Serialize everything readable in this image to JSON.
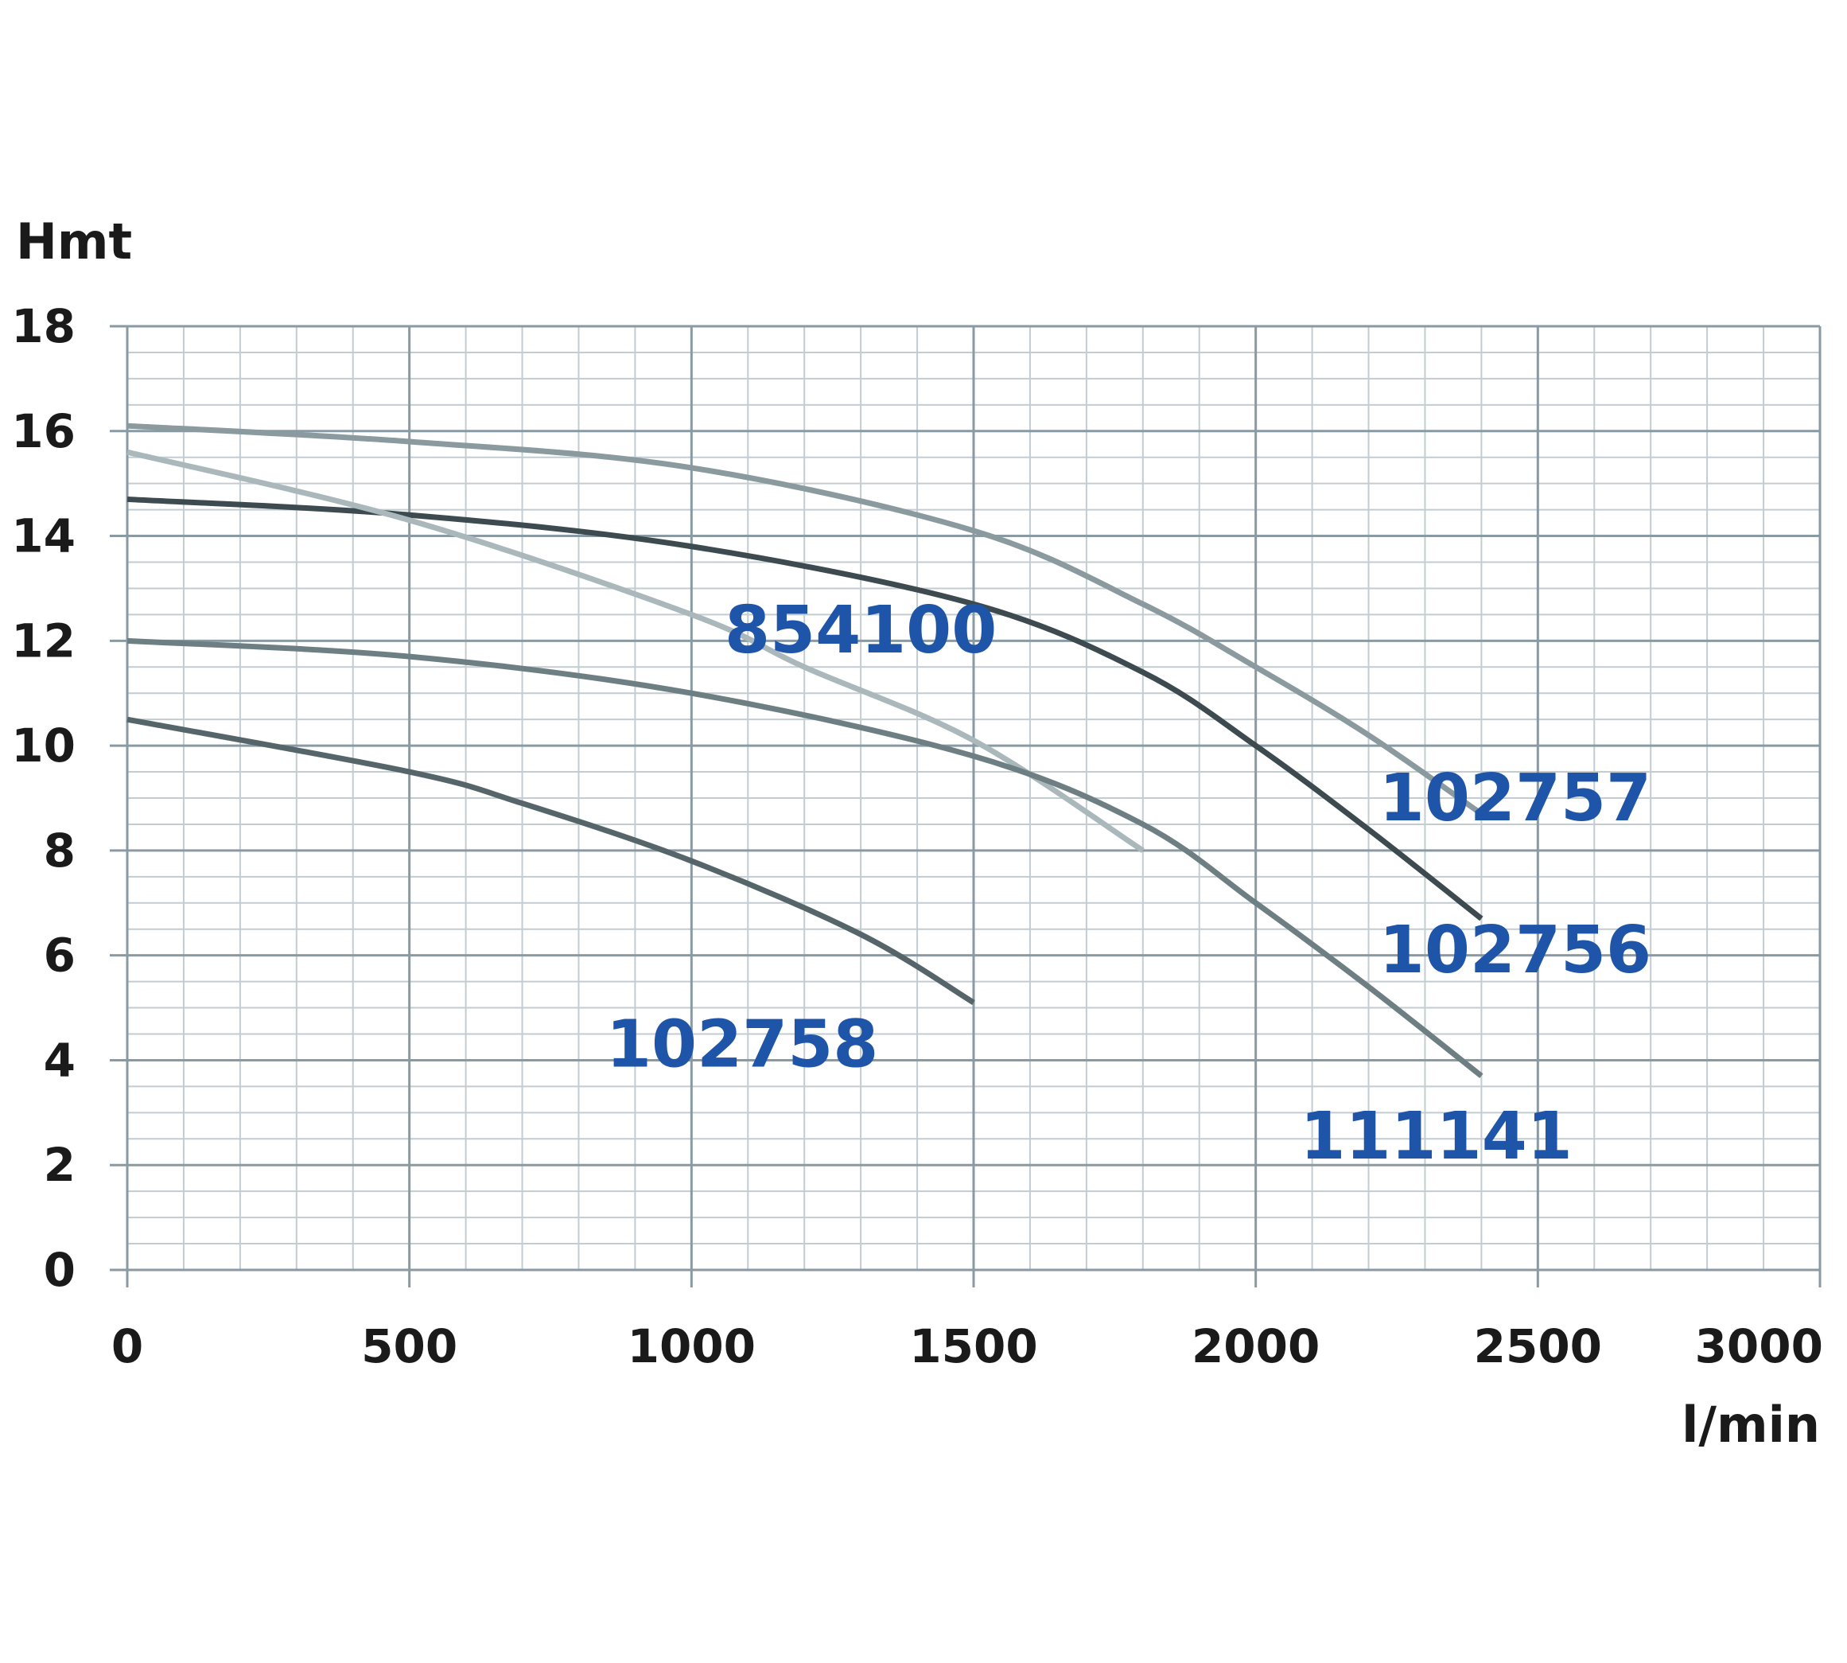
{
  "chart_data": {
    "type": "line",
    "title": "",
    "xlabel": "l/min",
    "ylabel": "Hmt",
    "xlim": [
      0,
      3000
    ],
    "ylim": [
      0,
      18
    ],
    "x_ticks": [
      0,
      500,
      1000,
      1500,
      2000,
      2500,
      3000
    ],
    "y_ticks": [
      0,
      2,
      4,
      6,
      8,
      10,
      12,
      14,
      16,
      18
    ],
    "grid": true,
    "legend": "none",
    "colors": {
      "grid_major": "#8a9aa3",
      "grid_minor": "#c2ccd1",
      "label_blue": "#1f55a8",
      "text": "#1a1a1a"
    },
    "series": [
      {
        "name": "102757",
        "color": "#8a9a9e",
        "x": [
          0,
          500,
          1000,
          1500,
          1800,
          2000,
          2200,
          2400
        ],
        "y": [
          16.1,
          15.8,
          15.3,
          14.1,
          12.7,
          11.5,
          10.2,
          8.7
        ]
      },
      {
        "name": "102756",
        "color": "#3d4a4f",
        "x": [
          0,
          500,
          1000,
          1500,
          1800,
          2000,
          2200,
          2400
        ],
        "y": [
          14.7,
          14.4,
          13.8,
          12.7,
          11.4,
          10.0,
          8.4,
          6.7
        ]
      },
      {
        "name": "854100",
        "color": "#aab7bb",
        "x": [
          0,
          500,
          1000,
          1200,
          1500,
          1800
        ],
        "y": [
          15.6,
          14.3,
          12.5,
          11.5,
          10.1,
          8.0
        ]
      },
      {
        "name": "111141",
        "color": "#6e7f84",
        "x": [
          0,
          500,
          1000,
          1500,
          1800,
          2000,
          2200,
          2400
        ],
        "y": [
          12.0,
          11.7,
          11.0,
          9.8,
          8.5,
          7.0,
          5.4,
          3.7
        ]
      },
      {
        "name": "102758",
        "color": "#55656a",
        "x": [
          0,
          500,
          700,
          1000,
          1300,
          1500
        ],
        "y": [
          10.5,
          9.5,
          8.9,
          7.8,
          6.4,
          5.1
        ]
      }
    ],
    "series_labels": [
      {
        "text": "854100",
        "series": "854100",
        "x": 1300,
        "y": 12.2
      },
      {
        "text": "102757",
        "series": "102757",
        "x": 2460,
        "y": 9.0
      },
      {
        "text": "102756",
        "series": "102756",
        "x": 2460,
        "y": 6.1
      },
      {
        "text": "102758",
        "series": "102758",
        "x": 1090,
        "y": 4.3
      },
      {
        "text": "111141",
        "series": "111141",
        "x": 2320,
        "y": 2.55
      }
    ]
  }
}
